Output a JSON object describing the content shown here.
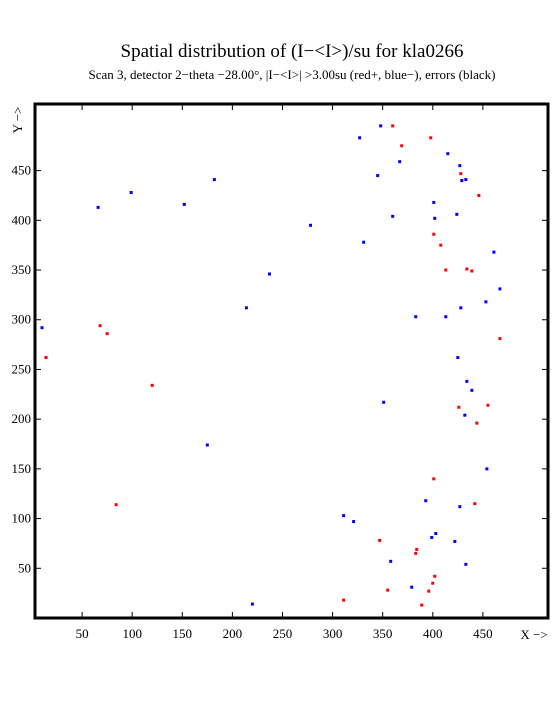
{
  "chart_data": {
    "type": "scatter",
    "title": "Spatial distribution of (I−<I>)/su for kla0266",
    "subtitle": "Scan  3, detector 2−theta −28.00°, |I−<I>| >3.00su (red+, blue−), errors (black)",
    "xlabel": "X −>",
    "ylabel": "Y −>",
    "xlim": [
      3,
      515
    ],
    "ylim": [
      0,
      517
    ],
    "x_ticks": [
      50,
      100,
      150,
      200,
      250,
      300,
      350,
      400,
      450
    ],
    "y_ticks": [
      50,
      100,
      150,
      200,
      250,
      300,
      350,
      400,
      450
    ],
    "grid": false,
    "series": [
      {
        "color": "#ff0000",
        "points": [
          [
            360,
            495
          ],
          [
            398,
            483
          ],
          [
            369,
            475
          ],
          [
            428,
            447
          ],
          [
            446,
            425
          ],
          [
            401,
            386
          ],
          [
            408,
            375
          ],
          [
            413,
            350
          ],
          [
            434,
            351
          ],
          [
            439,
            349
          ],
          [
            68,
            294
          ],
          [
            75,
            286
          ],
          [
            14,
            262
          ],
          [
            467,
            281
          ],
          [
            120,
            234
          ],
          [
            426,
            212
          ],
          [
            455,
            214
          ],
          [
            444,
            196
          ],
          [
            401,
            140
          ],
          [
            84,
            114
          ],
          [
            442,
            115
          ],
          [
            347,
            78
          ],
          [
            384,
            69
          ],
          [
            383,
            65
          ],
          [
            402,
            42
          ],
          [
            400,
            35
          ],
          [
            396,
            27
          ],
          [
            355,
            28
          ],
          [
            311,
            18
          ],
          [
            389,
            13
          ]
        ]
      },
      {
        "color": "#0000ff",
        "points": [
          [
            348,
            495
          ],
          [
            327,
            483
          ],
          [
            415,
            467
          ],
          [
            367,
            459
          ],
          [
            427,
            455
          ],
          [
            345,
            445
          ],
          [
            429,
            440
          ],
          [
            433,
            441
          ],
          [
            182,
            441
          ],
          [
            99,
            428
          ],
          [
            152,
            416
          ],
          [
            66,
            413
          ],
          [
            401,
            418
          ],
          [
            424,
            406
          ],
          [
            360,
            404
          ],
          [
            402,
            402
          ],
          [
            278,
            395
          ],
          [
            331,
            378
          ],
          [
            461,
            368
          ],
          [
            237,
            346
          ],
          [
            467,
            331
          ],
          [
            453,
            318
          ],
          [
            214,
            312
          ],
          [
            428,
            312
          ],
          [
            383,
            303
          ],
          [
            413,
            303
          ],
          [
            10,
            292
          ],
          [
            425,
            262
          ],
          [
            434,
            238
          ],
          [
            439,
            229
          ],
          [
            351,
            217
          ],
          [
            432,
            204
          ],
          [
            175,
            174
          ],
          [
            454,
            150
          ],
          [
            393,
            118
          ],
          [
            427,
            112
          ],
          [
            311,
            103
          ],
          [
            321,
            97
          ],
          [
            403,
            85
          ],
          [
            399,
            81
          ],
          [
            422,
            77
          ],
          [
            358,
            57
          ],
          [
            433,
            54
          ],
          [
            379,
            31
          ],
          [
            220,
            14
          ]
        ]
      }
    ]
  }
}
